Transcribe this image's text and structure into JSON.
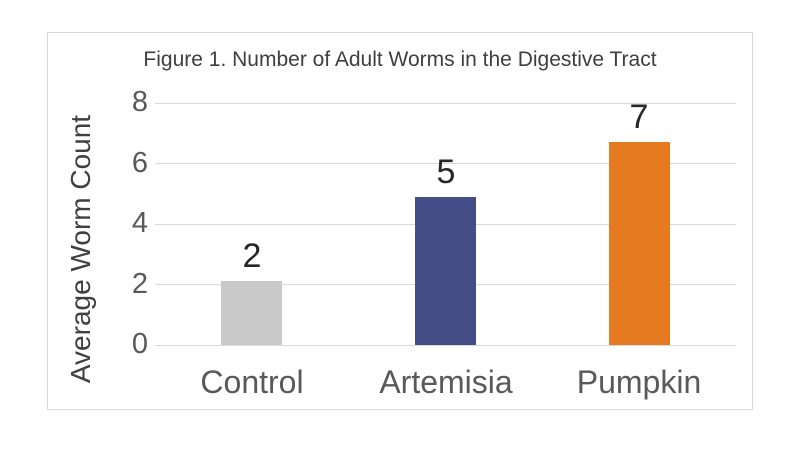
{
  "chart_data": {
    "type": "bar",
    "title": "Figure 1. Number of Adult Worms in the Digestive Tract",
    "xlabel": "",
    "ylabel": "Average Worm Count",
    "categories": [
      "Control",
      "Artemisia",
      "Pumpkin"
    ],
    "values": [
      2,
      5,
      7
    ],
    "data_labels": [
      "2",
      "5",
      "7"
    ],
    "rendered_values": [
      2.1,
      4.9,
      6.7
    ],
    "yticks": [
      0,
      2,
      4,
      6,
      8
    ],
    "ylim": [
      0,
      8
    ],
    "grid": "horizontal",
    "legend": "none",
    "colors": {
      "bars": [
        "#c9c9c9",
        "#454d86",
        "#e67a20"
      ],
      "gridline": "#d9d9d9",
      "frame_border": "#d8d8d8",
      "background": "#ffffff",
      "title_text": "#3f3f3f",
      "axis_title_text": "#3f3f3f",
      "tick_label_text": "#595959",
      "category_label_text": "#595959",
      "value_label_text": "#262626"
    }
  }
}
